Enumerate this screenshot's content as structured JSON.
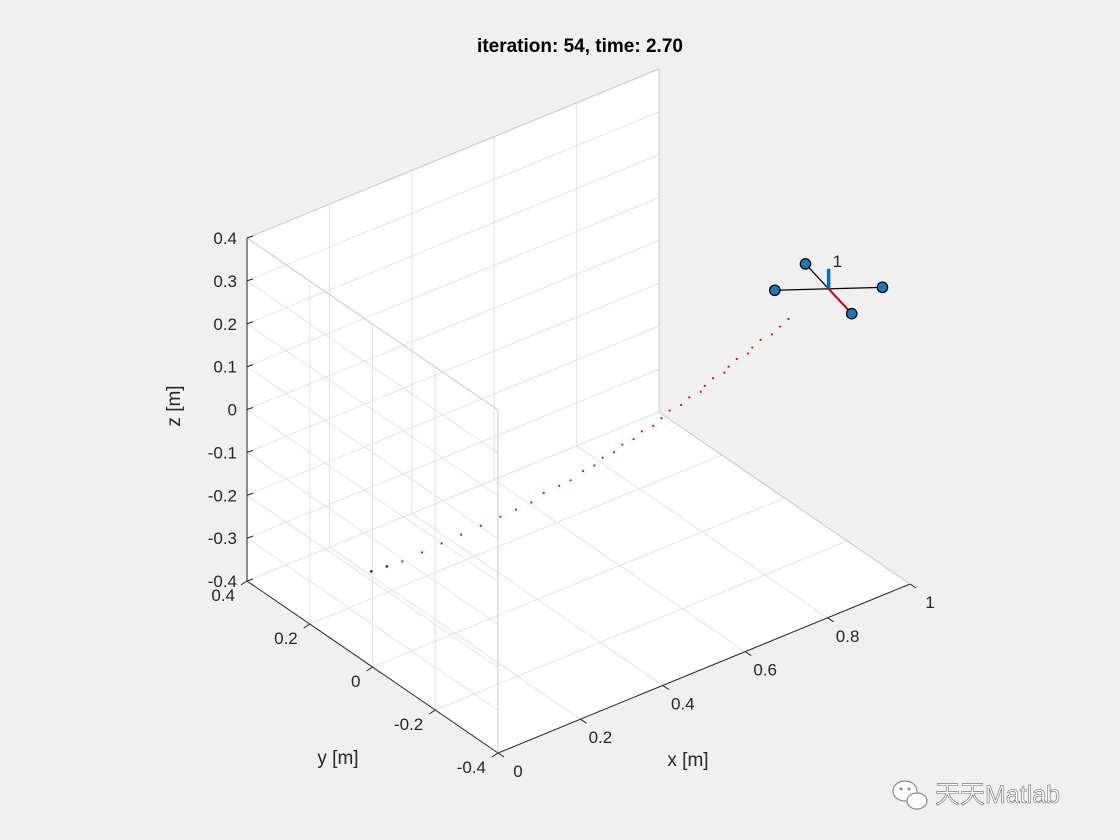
{
  "chart_data": {
    "type": "scatter",
    "title": "iteration: 54, time: 2.70",
    "xlabel": "x [m]",
    "ylabel": "y [m]",
    "zlabel": "z [m]",
    "xlim": [
      0,
      1
    ],
    "ylim": [
      -0.4,
      0.4
    ],
    "zlim": [
      -0.4,
      0.4
    ],
    "x_ticks": [
      "0",
      "0.2",
      "0.4",
      "0.6",
      "0.8",
      "1"
    ],
    "y_ticks": [
      "-0.4",
      "-0.2",
      "0",
      "0.2",
      "0.4"
    ],
    "z_ticks": [
      "-0.4",
      "-0.3",
      "-0.2",
      "-0.1",
      "0",
      "0.1",
      "0.2",
      "0.3",
      "0.4"
    ],
    "grid": true,
    "trajectory": {
      "color": "#ff0000",
      "points": [
        [
          0.02,
          0.03,
          -0.2
        ],
        [
          0.05,
          0.02,
          -0.195
        ],
        [
          0.08,
          0.01,
          -0.19
        ],
        [
          0.12,
          0.0,
          -0.18
        ],
        [
          0.16,
          -0.01,
          -0.17
        ],
        [
          0.2,
          -0.02,
          -0.16
        ],
        [
          0.24,
          -0.03,
          -0.15
        ],
        [
          0.28,
          -0.04,
          -0.14
        ],
        [
          0.31,
          -0.05,
          -0.13
        ],
        [
          0.34,
          -0.06,
          -0.12
        ],
        [
          0.37,
          -0.06,
          -0.11
        ],
        [
          0.4,
          -0.07,
          -0.1
        ],
        [
          0.42,
          -0.08,
          -0.09
        ],
        [
          0.45,
          -0.08,
          -0.08
        ],
        [
          0.47,
          -0.09,
          -0.07
        ],
        [
          0.49,
          -0.09,
          -0.06
        ],
        [
          0.51,
          -0.1,
          -0.05
        ],
        [
          0.53,
          -0.1,
          -0.04
        ],
        [
          0.55,
          -0.11,
          -0.03
        ],
        [
          0.57,
          -0.11,
          -0.02
        ],
        [
          0.59,
          -0.12,
          -0.01
        ],
        [
          0.61,
          -0.12,
          0.0
        ],
        [
          0.63,
          -0.12,
          0.01
        ],
        [
          0.65,
          -0.13,
          0.02
        ],
        [
          0.67,
          -0.13,
          0.03
        ],
        [
          0.69,
          -0.14,
          0.04
        ],
        [
          0.7,
          -0.14,
          0.05
        ],
        [
          0.72,
          -0.14,
          0.06
        ],
        [
          0.74,
          -0.15,
          0.07
        ],
        [
          0.75,
          -0.15,
          0.08
        ],
        [
          0.77,
          -0.15,
          0.09
        ],
        [
          0.79,
          -0.16,
          0.1
        ],
        [
          0.8,
          -0.16,
          0.11
        ],
        [
          0.82,
          -0.16,
          0.12
        ],
        [
          0.84,
          -0.17,
          0.13
        ],
        [
          0.86,
          -0.17,
          0.14
        ],
        [
          0.88,
          -0.17,
          0.15
        ]
      ]
    },
    "quadrotor": {
      "label": "1",
      "center": [
        0.97,
        -0.18,
        0.19
      ],
      "arm_length": 0.1,
      "rotor_color": "#1f77b4",
      "heading_color": "#cc0000",
      "up_color": "#0072bd"
    }
  },
  "watermark": {
    "text": "天天Matlab",
    "icon": "wechat-icon"
  }
}
